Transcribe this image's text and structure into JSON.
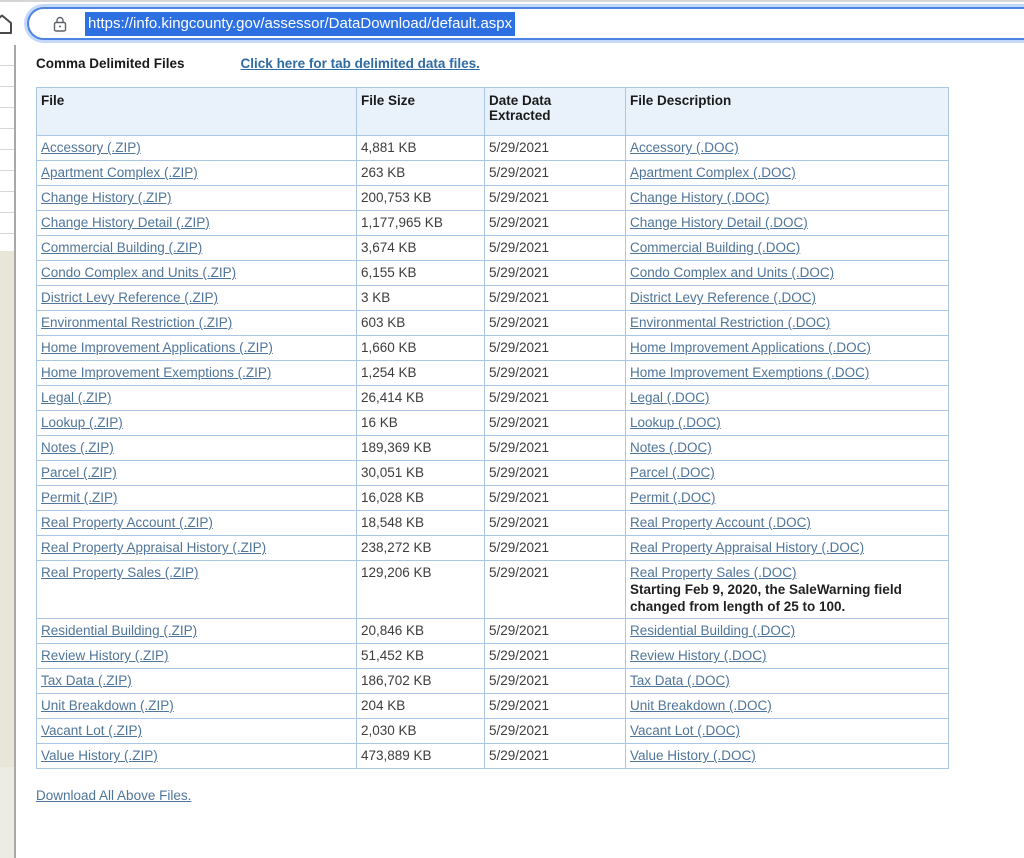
{
  "browser": {
    "url": "https://info.kingcounty.gov/assessor/DataDownload/default.aspx"
  },
  "page": {
    "heading": "Comma Delimited Files",
    "tab_delimited_link": "Click here for tab delimited data files.",
    "download_all_link": "Download All Above Files."
  },
  "table": {
    "headers": [
      "File",
      "File Size",
      "Date Data Extracted",
      "File Description"
    ],
    "rows": [
      {
        "file": "Accessory (.ZIP)",
        "size": "4,881 KB",
        "date": "5/29/2021",
        "desc": "Accessory (.DOC)"
      },
      {
        "file": "Apartment Complex (.ZIP)",
        "size": "263 KB",
        "date": "5/29/2021",
        "desc": "Apartment Complex (.DOC)"
      },
      {
        "file": "Change History (.ZIP)",
        "size": "200,753 KB",
        "date": "5/29/2021",
        "desc": "Change History (.DOC)"
      },
      {
        "file": "Change History Detail (.ZIP)",
        "size": "1,177,965 KB",
        "date": "5/29/2021",
        "desc": "Change History Detail (.DOC)"
      },
      {
        "file": "Commercial Building (.ZIP)",
        "size": "3,674 KB",
        "date": "5/29/2021",
        "desc": "Commercial Building (.DOC)"
      },
      {
        "file": "Condo Complex and Units (.ZIP)",
        "size": "6,155 KB",
        "date": "5/29/2021",
        "desc": "Condo Complex and Units (.DOC)"
      },
      {
        "file": "District Levy Reference (.ZIP)",
        "size": "3 KB",
        "date": "5/29/2021",
        "desc": "District Levy Reference (.DOC)"
      },
      {
        "file": "Environmental Restriction (.ZIP)",
        "size": "603 KB",
        "date": "5/29/2021",
        "desc": "Environmental Restriction (.DOC)"
      },
      {
        "file": "Home Improvement Applications (.ZIP)",
        "size": "1,660 KB",
        "date": "5/29/2021",
        "desc": "Home Improvement Applications (.DOC)"
      },
      {
        "file": "Home Improvement Exemptions (.ZIP)",
        "size": "1,254 KB",
        "date": "5/29/2021",
        "desc": "Home Improvement Exemptions (.DOC)"
      },
      {
        "file": "Legal (.ZIP)",
        "size": "26,414 KB",
        "date": "5/29/2021",
        "desc": "Legal (.DOC)"
      },
      {
        "file": "Lookup (.ZIP)",
        "size": "16 KB",
        "date": "5/29/2021",
        "desc": "Lookup (.DOC)"
      },
      {
        "file": "Notes (.ZIP)",
        "size": "189,369 KB",
        "date": "5/29/2021",
        "desc": "Notes (.DOC)"
      },
      {
        "file": "Parcel (.ZIP)",
        "size": "30,051 KB",
        "date": "5/29/2021",
        "desc": "Parcel (.DOC)"
      },
      {
        "file": "Permit (.ZIP)",
        "size": "16,028 KB",
        "date": "5/29/2021",
        "desc": "Permit (.DOC)"
      },
      {
        "file": "Real Property Account (.ZIP)",
        "size": "18,548 KB",
        "date": "5/29/2021",
        "desc": "Real Property Account (.DOC)"
      },
      {
        "file": "Real Property Appraisal History (.ZIP)",
        "size": "238,272 KB",
        "date": "5/29/2021",
        "desc": "Real Property Appraisal History (.DOC)"
      },
      {
        "file": "Real Property Sales (.ZIP)",
        "size": "129,206 KB",
        "date": "5/29/2021",
        "desc": "Real Property Sales (.DOC)",
        "note": "Starting Feb 9, 2020, the SaleWarning field changed from length of 25 to 100."
      },
      {
        "file": "Residential Building (.ZIP)",
        "size": "20,846 KB",
        "date": "5/29/2021",
        "desc": "Residential Building (.DOC)"
      },
      {
        "file": "Review History (.ZIP)",
        "size": "51,452 KB",
        "date": "5/29/2021",
        "desc": "Review History (.DOC)"
      },
      {
        "file": "Tax Data (.ZIP)",
        "size": "186,702 KB",
        "date": "5/29/2021",
        "desc": "Tax Data (.DOC)"
      },
      {
        "file": "Unit Breakdown (.ZIP)",
        "size": "204 KB",
        "date": "5/29/2021",
        "desc": "Unit Breakdown (.DOC)"
      },
      {
        "file": "Vacant Lot (.ZIP)",
        "size": "2,030 KB",
        "date": "5/29/2021",
        "desc": "Vacant Lot (.DOC)"
      },
      {
        "file": "Value History (.ZIP)",
        "size": "473,889 KB",
        "date": "5/29/2021",
        "desc": "Value History (.DOC)"
      }
    ]
  },
  "colors": {
    "table_border": "#a9c7e5",
    "header_bg": "#e9f2fb",
    "table_link": "#50759a",
    "top_link": "#2e6ca5",
    "url_selection": "#2c70e2",
    "focus_ring": "#4d83e3"
  }
}
